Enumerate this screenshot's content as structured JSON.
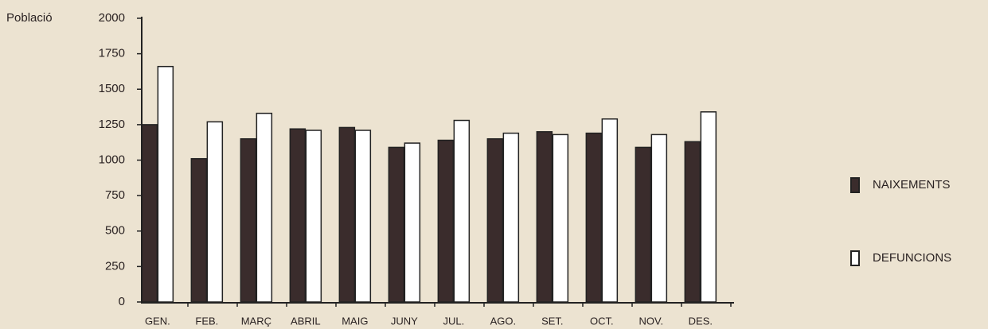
{
  "chart_data": {
    "type": "bar",
    "y_label": "Població",
    "categories": [
      "GEN.",
      "FEB.",
      "MARÇ",
      "ABRIL",
      "MAIG",
      "JUNY",
      "JUL.",
      "AGO.",
      "SET.",
      "OCT.",
      "NOV.",
      "DES."
    ],
    "series": [
      {
        "name": "NAIXEMENTS",
        "color": "#3a2c2c",
        "values": [
          1250,
          1010,
          1150,
          1220,
          1230,
          1090,
          1140,
          1150,
          1200,
          1190,
          1090,
          1130
        ]
      },
      {
        "name": "DEFUNCIONS",
        "color": "#ffffff",
        "values": [
          1660,
          1270,
          1330,
          1210,
          1210,
          1120,
          1280,
          1190,
          1180,
          1290,
          1180,
          1340
        ]
      }
    ],
    "ylim": [
      0,
      2000
    ],
    "yticks": [
      0,
      250,
      500,
      750,
      1000,
      1250,
      1500,
      1750,
      2000
    ],
    "grid": false,
    "legend": "right"
  }
}
